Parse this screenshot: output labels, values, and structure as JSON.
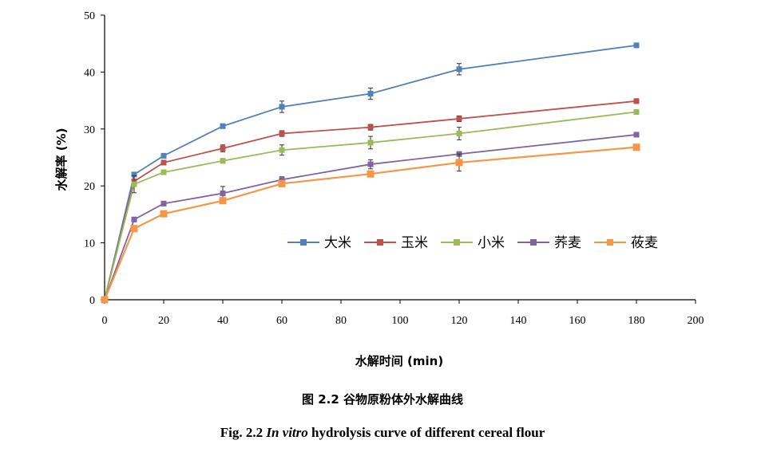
{
  "chart_data": {
    "type": "line",
    "title": "",
    "xlabel": "水解时间 (min)",
    "ylabel": "水解率 (%)",
    "xlim": [
      0,
      200
    ],
    "ylim": [
      0,
      50
    ],
    "xticks": [
      0,
      20,
      40,
      60,
      80,
      100,
      120,
      140,
      160,
      180,
      200
    ],
    "yticks": [
      0,
      10,
      20,
      30,
      40,
      50
    ],
    "grid": false,
    "legend_position": "lower-right",
    "x": [
      0,
      10,
      20,
      40,
      60,
      90,
      120,
      180
    ],
    "series": [
      {
        "name": "大米",
        "color": "#4f81bd",
        "values": [
          0,
          22.0,
          25.3,
          30.5,
          33.9,
          36.2,
          40.5,
          44.7
        ],
        "errors": [
          0,
          0.4,
          0.4,
          0.4,
          1.0,
          1.0,
          1.0,
          0.4
        ]
      },
      {
        "name": "玉米",
        "color": "#c0504d",
        "values": [
          0,
          20.8,
          24.1,
          26.6,
          29.2,
          30.3,
          31.8,
          34.9
        ],
        "errors": [
          0,
          0.4,
          0.4,
          0.6,
          0.5,
          0.5,
          0.5,
          0.4
        ]
      },
      {
        "name": "小米",
        "color": "#9bbb59",
        "values": [
          0,
          20.3,
          22.4,
          24.4,
          26.3,
          27.6,
          29.2,
          33.0
        ],
        "errors": [
          0,
          1.5,
          0.4,
          0.4,
          0.9,
          1.1,
          1.1,
          0.4
        ]
      },
      {
        "name": "荞麦",
        "color": "#8064a2",
        "values": [
          0,
          14.1,
          16.9,
          18.7,
          21.1,
          23.8,
          25.6,
          29.0
        ],
        "errors": [
          0,
          0.4,
          0.4,
          1.2,
          0.5,
          0.8,
          0.4,
          0.4
        ]
      },
      {
        "name": "莜麦",
        "color": "#f79646",
        "values": [
          0,
          12.5,
          15.1,
          17.4,
          20.4,
          22.1,
          24.1,
          26.8
        ],
        "errors": [
          0,
          0.4,
          0.4,
          0.4,
          0.4,
          0.4,
          1.5,
          0.4
        ]
      }
    ]
  },
  "caption": {
    "cn": "图 2.2  谷物原粉体外水解曲线",
    "en_prefix": "Fig. 2.2 ",
    "en_italic": "In vitro",
    "en_suffix": " hydrolysis curve of different cereal flour"
  }
}
